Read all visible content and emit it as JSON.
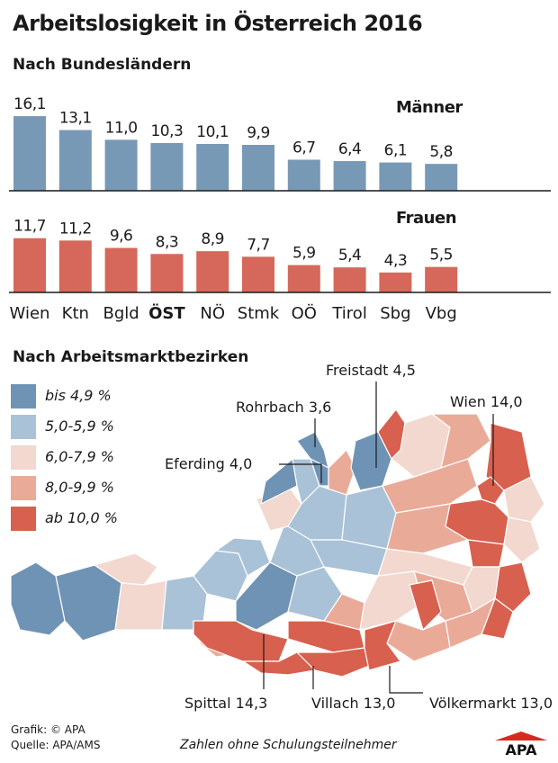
{
  "title": "Arbeitslosigkeit in Österreich 2016",
  "section_bundeslaender": "Nach Bundesländern",
  "section_bezirke": "Nach Arbeitsmarktbezirken",
  "chart_data": {
    "type": "bar",
    "categories": [
      "Wien",
      "Ktn",
      "Bgld",
      "ÖST",
      "NÖ",
      "Stmk",
      "OÖ",
      "Tirol",
      "Sbg",
      "Vbg"
    ],
    "highlight_category": "ÖST",
    "series": [
      {
        "name": "Männer",
        "color": "#7899b5",
        "values": [
          16.1,
          13.1,
          11.0,
          10.3,
          10.1,
          9.9,
          6.7,
          6.4,
          6.1,
          5.8
        ],
        "labels": [
          "16,1",
          "13,1",
          "11,0",
          "10,3",
          "10,1",
          "9,9",
          "6,7",
          "6,4",
          "6,1",
          "5,8"
        ]
      },
      {
        "name": "Frauen",
        "color": "#d5685a",
        "values": [
          11.7,
          11.2,
          9.6,
          8.3,
          8.9,
          7.7,
          5.9,
          5.4,
          4.3,
          5.5
        ],
        "labels": [
          "11,7",
          "11,2",
          "9,6",
          "8,3",
          "8,9",
          "7,7",
          "5,9",
          "5,4",
          "4,3",
          "5,5"
        ]
      }
    ],
    "grid": false
  },
  "map": {
    "legend": [
      {
        "label": "bis 4,9 %",
        "color": "#6f93b4"
      },
      {
        "label": "5,0-5,9 %",
        "color": "#aac2d7"
      },
      {
        "label": "6,0-7,9 %",
        "color": "#f2d8ce"
      },
      {
        "label": "8,0-9,9 %",
        "color": "#e9ab98"
      },
      {
        "label": "ab 10,0 %",
        "color": "#d8604e"
      }
    ],
    "annotations": [
      {
        "label": "Freistadt 4,5"
      },
      {
        "label": "Rohrbach 3,6"
      },
      {
        "label": "Wien 14,0"
      },
      {
        "label": "Eferding 4,0"
      },
      {
        "label": "Spittal 14,3"
      },
      {
        "label": "Villach 13,0"
      },
      {
        "label": "Völkermarkt 13,0"
      }
    ]
  },
  "footer": {
    "credit": "Grafik: © APA",
    "source": "Quelle: APA/AMS",
    "note": "Zahlen ohne Schulungsteilnehmer",
    "logo": "APA"
  }
}
